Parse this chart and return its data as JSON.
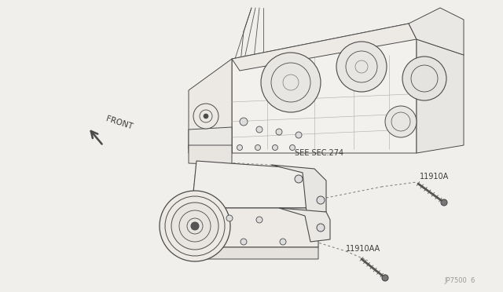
{
  "bg_color": "#f0efeb",
  "line_color": "#4a4a4a",
  "text_color": "#3a3a3a",
  "gray_color": "#888888",
  "figsize": [
    6.4,
    3.72
  ],
  "dpi": 100,
  "labels": {
    "front_text": "FRONT",
    "see_sec": "SEE SEC.274",
    "part1": "11910A",
    "part2": "11910AA",
    "diagram_code": "JP7500  6"
  }
}
